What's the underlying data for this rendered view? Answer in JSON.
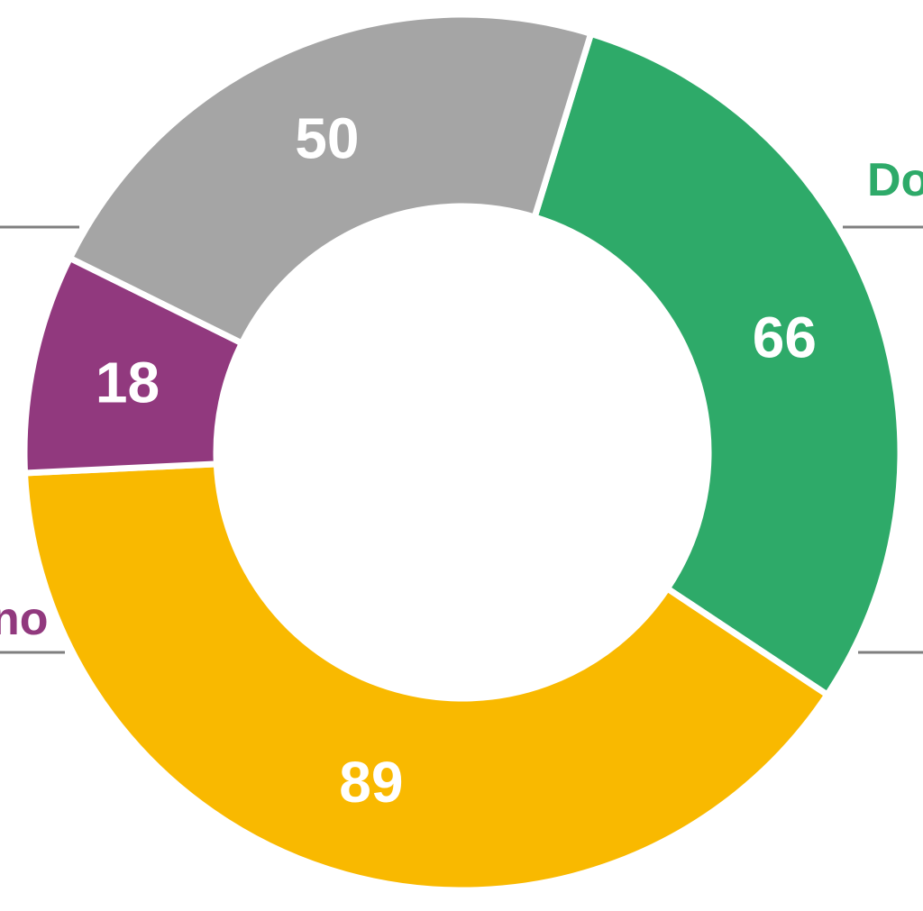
{
  "chart_data": {
    "type": "pie",
    "variant": "donut",
    "title": "",
    "slices": [
      {
        "name": "Do",
        "value": 66,
        "color": "#2eaa69"
      },
      {
        "name": "",
        "value": 89,
        "color": "#f9b900"
      },
      {
        "name": "no",
        "value": 18,
        "color": "#91397e"
      },
      {
        "name": "",
        "value": 50,
        "color": "#a5a5a5"
      }
    ],
    "legend": "outside-labels"
  }
}
